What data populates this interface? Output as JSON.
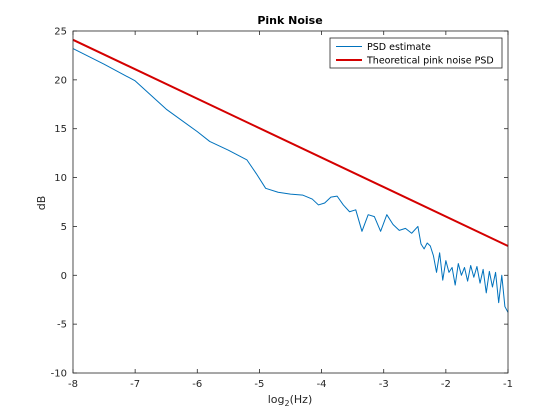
{
  "chart_data": {
    "type": "line",
    "title": "Pink Noise",
    "xlabel": "log",
    "xlabel_subscript": "2",
    "xlabel_suffix": "(Hz)",
    "ylabel": "dB",
    "xlim": [
      -8,
      -1
    ],
    "ylim": [
      -10,
      25
    ],
    "xticks": [
      -8,
      -7,
      -6,
      -5,
      -4,
      -3,
      -2,
      -1
    ],
    "yticks": [
      -10,
      -5,
      0,
      5,
      10,
      15,
      20,
      25
    ],
    "grid": true,
    "legend_position": "top-right",
    "series": [
      {
        "name": "PSD estimate",
        "color": "#0072BD",
        "x": [
          -8,
          -7.5,
          -7,
          -6.5,
          -6,
          -5.8,
          -5.5,
          -5.2,
          -5.05,
          -4.9,
          -4.7,
          -4.5,
          -4.3,
          -4.15,
          -4.05,
          -3.95,
          -3.85,
          -3.75,
          -3.65,
          -3.55,
          -3.45,
          -3.35,
          -3.25,
          -3.15,
          -3.05,
          -2.95,
          -2.85,
          -2.75,
          -2.65,
          -2.55,
          -2.45,
          -2.4,
          -2.35,
          -2.3,
          -2.25,
          -2.2,
          -2.15,
          -2.1,
          -2.05,
          -2.0,
          -1.95,
          -1.9,
          -1.85,
          -1.8,
          -1.75,
          -1.7,
          -1.65,
          -1.6,
          -1.55,
          -1.5,
          -1.45,
          -1.4,
          -1.35,
          -1.3,
          -1.25,
          -1.2,
          -1.15,
          -1.1,
          -1.05,
          -1.0
        ],
        "y": [
          23.2,
          21.6,
          19.9,
          17.0,
          14.7,
          13.7,
          12.8,
          11.8,
          10.4,
          8.9,
          8.5,
          8.3,
          8.2,
          7.8,
          7.2,
          7.4,
          8.0,
          8.1,
          7.2,
          6.5,
          6.7,
          4.5,
          6.2,
          6.0,
          4.5,
          6.2,
          5.2,
          4.6,
          4.8,
          4.3,
          5.0,
          3.2,
          2.7,
          3.3,
          3.0,
          2.0,
          0.3,
          2.3,
          -0.5,
          1.5,
          0.3,
          0.8,
          -1.0,
          1.2,
          0.0,
          0.8,
          -0.6,
          1.0,
          -0.2,
          0.9,
          -0.8,
          0.6,
          -1.8,
          0.4,
          -1.2,
          0.3,
          -2.8,
          0.0,
          -3.2,
          -3.8
        ]
      },
      {
        "name": "Theoretical pink noise PSD",
        "color": "#D40000",
        "x": [
          -8,
          -1
        ],
        "y": [
          24.1,
          3.0
        ]
      }
    ]
  }
}
